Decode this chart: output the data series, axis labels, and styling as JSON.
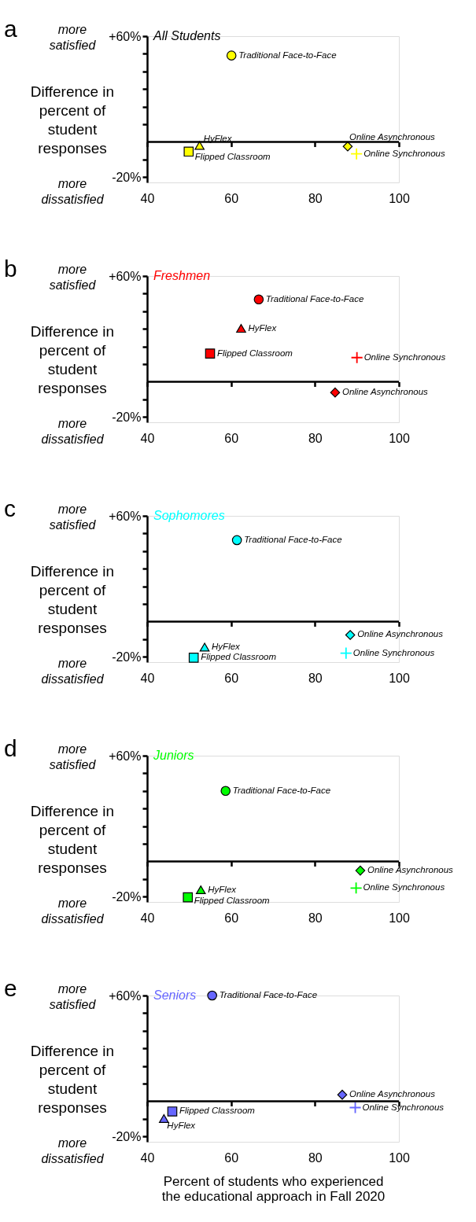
{
  "chart_data": [
    {
      "type": "scatter",
      "title": "All Students",
      "ylabel": "Difference in percent of student responses",
      "annotations": [
        "a",
        "more satisfied",
        "more dissatisfied"
      ],
      "xlim": [
        40,
        100
      ],
      "xticks": [
        40,
        60,
        80,
        100
      ],
      "ylim": [
        -23,
        60
      ],
      "yticks": [
        {
          "value": 60,
          "label": "+60%"
        },
        {
          "value": 50,
          "label": null
        },
        {
          "value": 40,
          "label": null
        },
        {
          "value": 30,
          "label": null
        },
        {
          "value": 20,
          "label": null
        },
        {
          "value": 10,
          "label": null
        },
        {
          "value": -10,
          "label": null
        },
        {
          "value": -20,
          "label": "-20%"
        }
      ],
      "ref_lines": [
        {
          "axis": "y",
          "value": 0
        }
      ],
      "grid": false,
      "series": [
        {
          "name": "Traditional Face-to-Face",
          "color": "#ffff00",
          "marker": "circle",
          "x": [
            60.1
          ],
          "values": [
            49
          ]
        },
        {
          "name": "HyFlex",
          "color": "#ffff00",
          "marker": "triangle",
          "x": [
            52.5
          ],
          "values": [
            -2
          ]
        },
        {
          "name": "Flipped Classroom",
          "color": "#ffff00",
          "marker": "square",
          "x": [
            49.9
          ],
          "values": [
            -5.5
          ]
        },
        {
          "name": "Online Asynchronous",
          "color": "#ffff00",
          "marker": "diamond",
          "x": [
            87.8
          ],
          "values": [
            -2.6
          ]
        },
        {
          "name": "Online Synchronous",
          "color": "#ffff00",
          "marker": "cross",
          "x": [
            89.9
          ],
          "values": [
            -6.8
          ]
        }
      ]
    },
    {
      "type": "scatter",
      "title": "Freshmen",
      "ylabel": "Difference in percent of student responses",
      "annotations": [
        "b",
        "more satisfied",
        "more dissatisfied"
      ],
      "xlim": [
        40,
        100
      ],
      "xticks": [
        40,
        60,
        80,
        100
      ],
      "ylim": [
        -23,
        60
      ],
      "yticks": [
        {
          "value": 60,
          "label": "+60%"
        },
        {
          "value": 50,
          "label": null
        },
        {
          "value": 40,
          "label": null
        },
        {
          "value": 30,
          "label": null
        },
        {
          "value": 20,
          "label": null
        },
        {
          "value": 10,
          "label": null
        },
        {
          "value": -10,
          "label": null
        },
        {
          "value": -20,
          "label": "-20%"
        }
      ],
      "ref_lines": [
        {
          "axis": "y",
          "value": 0
        }
      ],
      "grid": false,
      "series": [
        {
          "name": "Traditional Face-to-Face",
          "color": "#ff0000",
          "marker": "circle",
          "x": [
            66.6
          ],
          "values": [
            46.7
          ]
        },
        {
          "name": "HyFlex",
          "color": "#ff0000",
          "marker": "triangle",
          "x": [
            62.4
          ],
          "values": [
            30.3
          ]
        },
        {
          "name": "Flipped Classroom",
          "color": "#ff0000",
          "marker": "square",
          "x": [
            55
          ],
          "values": [
            16
          ]
        },
        {
          "name": "Online Asynchronous",
          "color": "#ff0000",
          "marker": "diamond",
          "x": [
            84.8
          ],
          "values": [
            -6.1
          ]
        },
        {
          "name": "Online Synchronous",
          "color": "#ff0000",
          "marker": "cross",
          "x": [
            90
          ],
          "values": [
            13.7
          ]
        }
      ]
    },
    {
      "type": "scatter",
      "title": "Sophomores",
      "ylabel": "Difference in percent of student responses",
      "annotations": [
        "c",
        "more satisfied",
        "more dissatisfied"
      ],
      "xlim": [
        40,
        100
      ],
      "xticks": [
        40,
        60,
        80,
        100
      ],
      "ylim": [
        -23,
        60
      ],
      "yticks": [
        {
          "value": 60,
          "label": "+60%"
        },
        {
          "value": 50,
          "label": null
        },
        {
          "value": 40,
          "label": null
        },
        {
          "value": 30,
          "label": null
        },
        {
          "value": 20,
          "label": null
        },
        {
          "value": 10,
          "label": null
        },
        {
          "value": -10,
          "label": null
        },
        {
          "value": -20,
          "label": "-20%"
        }
      ],
      "ref_lines": [
        {
          "axis": "y",
          "value": 0
        }
      ],
      "grid": false,
      "series": [
        {
          "name": "Traditional Face-to-Face",
          "color": "#00ffff",
          "marker": "circle",
          "x": [
            61.4
          ],
          "values": [
            46.2
          ]
        },
        {
          "name": "HyFlex",
          "color": "#00ffff",
          "marker": "triangle",
          "x": [
            53.7
          ],
          "values": [
            -14.5
          ]
        },
        {
          "name": "Flipped Classroom",
          "color": "#00ffff",
          "marker": "square",
          "x": [
            51.1
          ],
          "values": [
            -20.5
          ]
        },
        {
          "name": "Online Asynchronous",
          "color": "#00ffff",
          "marker": "diamond",
          "x": [
            88.4
          ],
          "values": [
            -7.6
          ]
        },
        {
          "name": "Online Synchronous",
          "color": "#00ffff",
          "marker": "cross",
          "x": [
            87.4
          ],
          "values": [
            -17.9
          ]
        }
      ]
    },
    {
      "type": "scatter",
      "title": "Juniors",
      "ylabel": "Difference in percent of student responses",
      "annotations": [
        "d",
        "more satisfied",
        "more dissatisfied"
      ],
      "xlim": [
        40,
        100
      ],
      "xticks": [
        40,
        60,
        80,
        100
      ],
      "ylim": [
        -23,
        60
      ],
      "yticks": [
        {
          "value": 60,
          "label": "+60%"
        },
        {
          "value": 50,
          "label": null
        },
        {
          "value": 40,
          "label": null
        },
        {
          "value": 30,
          "label": null
        },
        {
          "value": 20,
          "label": null
        },
        {
          "value": 10,
          "label": null
        },
        {
          "value": -10,
          "label": null
        },
        {
          "value": -20,
          "label": "-20%"
        }
      ],
      "ref_lines": [
        {
          "axis": "y",
          "value": 0
        }
      ],
      "grid": false,
      "series": [
        {
          "name": "Traditional Face-to-Face",
          "color": "#00ff00",
          "marker": "circle",
          "x": [
            58.7
          ],
          "values": [
            40
          ]
        },
        {
          "name": "HyFlex",
          "color": "#00ff00",
          "marker": "triangle",
          "x": [
            52.8
          ],
          "values": [
            -16.1
          ]
        },
        {
          "name": "Flipped Classroom",
          "color": "#00ff00",
          "marker": "square",
          "x": [
            49.7
          ],
          "values": [
            -20.4
          ]
        },
        {
          "name": "Online Asynchronous",
          "color": "#00ff00",
          "marker": "diamond",
          "x": [
            90.8
          ],
          "values": [
            -5.2
          ]
        },
        {
          "name": "Online Synchronous",
          "color": "#00ff00",
          "marker": "cross",
          "x": [
            89.8
          ],
          "values": [
            -15.1
          ]
        }
      ]
    },
    {
      "type": "scatter",
      "title": "Seniors",
      "ylabel": "Difference in percent of student responses",
      "xlabel": "Percent of students who experienced the educational approach in Fall 2020",
      "annotations": [
        "e",
        "more satisfied",
        "more dissatisfied"
      ],
      "xlim": [
        40,
        100
      ],
      "xticks": [
        40,
        60,
        80,
        100
      ],
      "ylim": [
        -23,
        60
      ],
      "yticks": [
        {
          "value": 60,
          "label": "+60%"
        },
        {
          "value": 50,
          "label": null
        },
        {
          "value": 40,
          "label": null
        },
        {
          "value": 30,
          "label": null
        },
        {
          "value": 20,
          "label": null
        },
        {
          "value": 10,
          "label": null
        },
        {
          "value": -10,
          "label": null
        },
        {
          "value": -20,
          "label": "-20%"
        }
      ],
      "ref_lines": [
        {
          "axis": "y",
          "value": 0
        }
      ],
      "grid": false,
      "series": [
        {
          "name": "Traditional Face-to-Face",
          "color": "#6666ff",
          "marker": "circle",
          "x": [
            55.5
          ],
          "values": [
            60
          ]
        },
        {
          "name": "HyFlex",
          "color": "#6666ff",
          "marker": "triangle",
          "x": [
            44
          ],
          "values": [
            -9.8
          ]
        },
        {
          "name": "Flipped Classroom",
          "color": "#6666ff",
          "marker": "square",
          "x": [
            46
          ],
          "values": [
            -5.8
          ]
        },
        {
          "name": "Online Asynchronous",
          "color": "#6666ff",
          "marker": "diamond",
          "x": [
            86.5
          ],
          "values": [
            3.7
          ]
        },
        {
          "name": "Online Synchronous",
          "color": "#6666ff",
          "marker": "cross",
          "x": [
            89.6
          ],
          "values": [
            -3.6
          ]
        }
      ]
    }
  ]
}
